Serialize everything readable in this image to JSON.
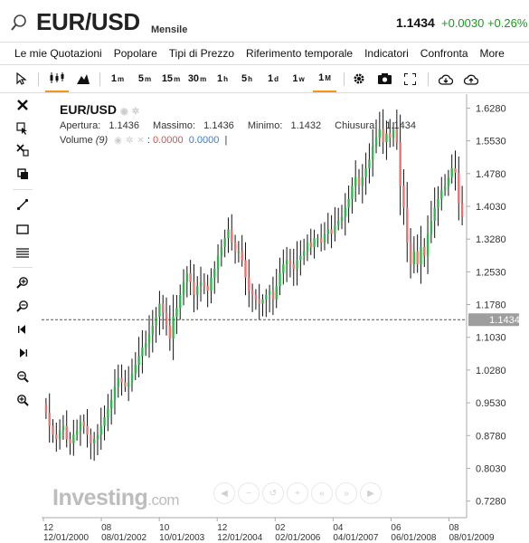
{
  "header": {
    "symbol": "EUR/USD",
    "period": "Mensile",
    "price": "1.1434",
    "change": "+0.0030 +0.26%"
  },
  "menu": [
    "Le mie Quotazioni",
    "Popolare",
    "Tipi di Prezzo",
    "Riferimento temporale",
    "Indicatori",
    "Confronta",
    "More"
  ],
  "toolbar": {
    "timeframes": [
      {
        "base": "1",
        "suf": "m"
      },
      {
        "base": "5",
        "suf": "m"
      },
      {
        "base": "15",
        "suf": "m"
      },
      {
        "base": "30",
        "suf": "m"
      },
      {
        "base": "1",
        "suf": "h"
      },
      {
        "base": "5",
        "suf": "h"
      },
      {
        "base": "1",
        "suf": "d"
      },
      {
        "base": "1",
        "suf": "w"
      },
      {
        "base": "1",
        "suf": "M"
      }
    ],
    "active_timeframe": "1M"
  },
  "legend": {
    "symbol": "EUR/USD",
    "open_label": "Apertura:",
    "open": "1.1436",
    "high_label": "Massimo:",
    "high": "1.1436",
    "low_label": "Minimo:",
    "low": "1.1432",
    "close_label": "Chiusura:",
    "close": "1.1434",
    "volume_label": "Volume",
    "volume_param": "(9)",
    "volume_red": "0.0000",
    "volume_blue": "0.0000"
  },
  "watermark": {
    "brand": "Investing",
    "suffix": ".com"
  },
  "colors": {
    "up": "#2db84d",
    "down": "#ef6f6f",
    "accent": "#f7941d",
    "price_label_bg": "#9e9e9e"
  },
  "chart_data": {
    "type": "candlestick",
    "y_ticks": [
      "1.6280",
      "1.5530",
      "1.4780",
      "1.4030",
      "1.3280",
      "1.2530",
      "1.1780",
      "1.1030",
      "1.0280",
      "0.9530",
      "0.8780",
      "0.8030",
      "0.7280"
    ],
    "ylim": [
      0.69,
      1.66
    ],
    "x_ticks_top": [
      "12",
      "08",
      "10",
      "12",
      "02",
      "04",
      "06",
      "08"
    ],
    "x_ticks_bottom": [
      "12/01/2000",
      "08/01/2002",
      "10/01/2003",
      "12/01/2004",
      "02/01/2006",
      "04/01/2007",
      "06/01/2008",
      "08/01/2009"
    ],
    "last_price": "1.1434",
    "last_price_value": 1.1434,
    "closes": [
      0.93,
      0.9,
      0.88,
      0.87,
      0.89,
      0.9,
      0.87,
      0.86,
      0.88,
      0.89,
      0.91,
      0.9,
      0.88,
      0.86,
      0.87,
      0.88,
      0.9,
      0.92,
      0.94,
      0.96,
      0.99,
      1.01,
      1.0,
      0.99,
      1.0,
      1.02,
      1.04,
      1.06,
      1.08,
      1.09,
      1.11,
      1.13,
      1.15,
      1.18,
      1.16,
      1.13,
      1.1,
      1.15,
      1.17,
      1.2,
      1.23,
      1.25,
      1.23,
      1.2,
      1.22,
      1.23,
      1.22,
      1.21,
      1.24,
      1.26,
      1.29,
      1.31,
      1.33,
      1.35,
      1.32,
      1.3,
      1.3,
      1.28,
      1.24,
      1.21,
      1.2,
      1.19,
      1.18,
      1.19,
      1.2,
      1.21,
      1.19,
      1.22,
      1.25,
      1.27,
      1.28,
      1.27,
      1.26,
      1.28,
      1.29,
      1.3,
      1.32,
      1.31,
      1.33,
      1.33,
      1.32,
      1.34,
      1.35,
      1.34,
      1.36,
      1.37,
      1.38,
      1.4,
      1.42,
      1.45,
      1.47,
      1.45,
      1.47,
      1.49,
      1.51,
      1.54,
      1.56,
      1.58,
      1.55,
      1.57,
      1.56,
      1.58,
      1.55,
      1.45,
      1.4,
      1.32,
      1.27,
      1.3,
      1.27,
      1.31,
      1.29,
      1.34,
      1.37,
      1.4,
      1.42,
      1.44,
      1.45,
      1.47,
      1.49,
      1.48,
      1.41,
      1.38
    ]
  }
}
